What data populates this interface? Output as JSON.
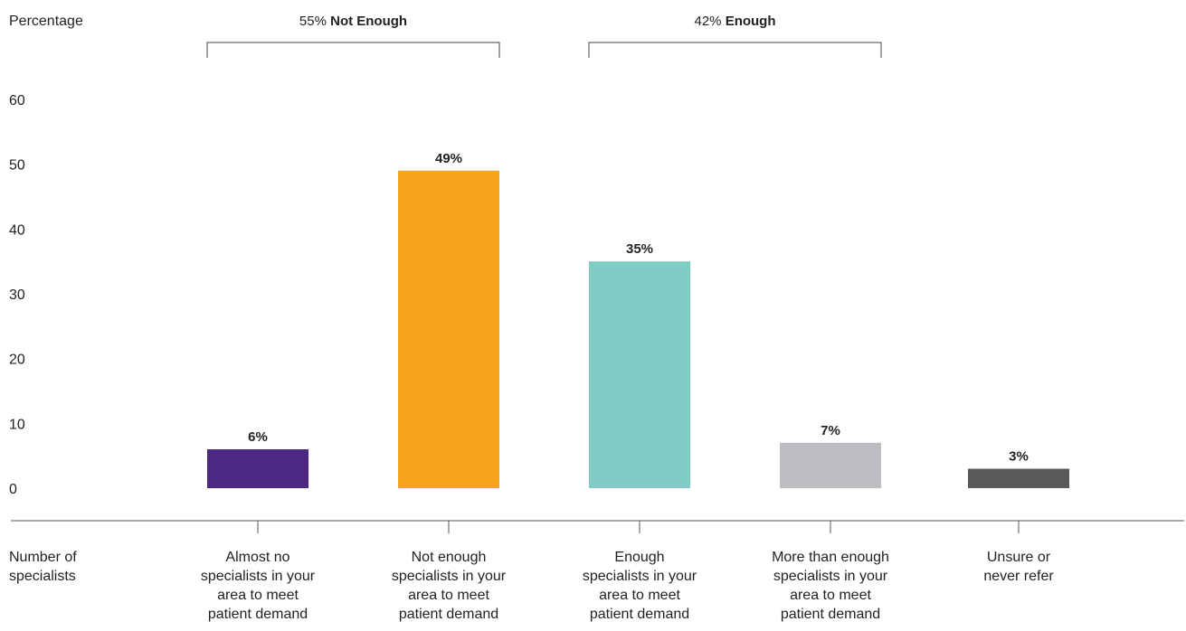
{
  "chart_data": {
    "type": "bar",
    "ylabel": "Percentage",
    "xlabel_lines": [
      "Number of",
      "specialists"
    ],
    "ylim": [
      0,
      60
    ],
    "yticks": [
      0,
      10,
      20,
      30,
      40,
      50,
      60
    ],
    "grid": false,
    "categories": [
      "Almost no specialists in your area to meet patient demand",
      "Not enough specialists in your area to meet patient demand",
      "Enough specialists in your area to meet patient demand",
      "More than enough specialists in your area to meet patient demand",
      "Unsure or never refer"
    ],
    "category_lines": [
      [
        "Almost no",
        "specialists in your",
        "area to meet",
        "patient demand"
      ],
      [
        "Not enough",
        "specialists in your",
        "area to meet",
        "patient demand"
      ],
      [
        "Enough",
        "specialists in your",
        "area to meet",
        "patient demand"
      ],
      [
        "More than enough",
        "specialists in your",
        "area to meet",
        "patient demand"
      ],
      [
        "Unsure or",
        "never refer"
      ]
    ],
    "values": [
      6,
      49,
      35,
      7,
      3
    ],
    "value_suffix": "%",
    "colors": [
      "#4b2882",
      "#f7a31c",
      "#80cbc4",
      "#bcbdc0",
      "#58595b"
    ],
    "groups": [
      {
        "label_value": "55%",
        "label_text": "Not Enough",
        "from": 0,
        "to": 1
      },
      {
        "label_value": "42%",
        "label_text": "Enough",
        "from": 2,
        "to": 3
      }
    ]
  }
}
